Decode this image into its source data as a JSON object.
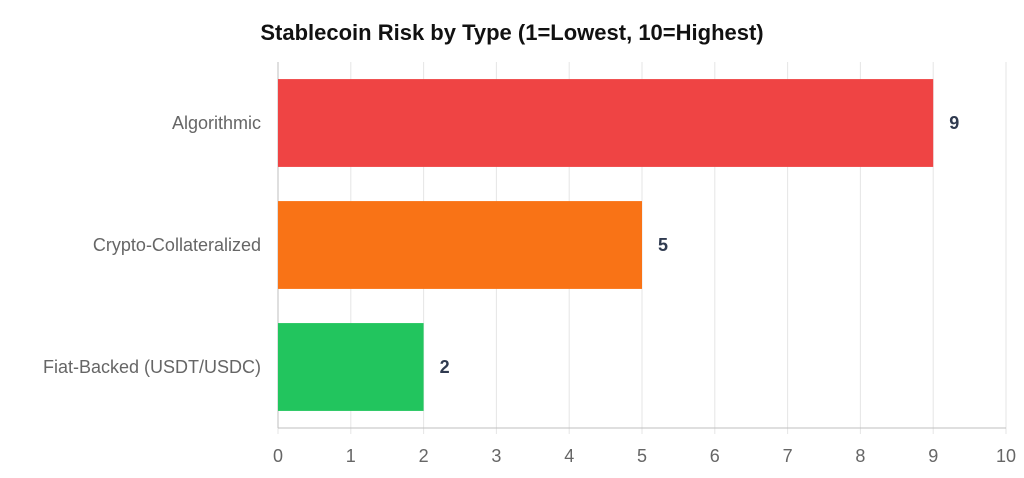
{
  "chart_data": {
    "type": "bar",
    "orientation": "horizontal",
    "title": "Stablecoin Risk by Type (1=Lowest, 10=Highest)",
    "categories": [
      "Algorithmic",
      "Crypto-Collateralized",
      "Fiat-Backed (USDT/USDC)"
    ],
    "values": [
      9,
      5,
      2
    ],
    "colors": [
      "#ef4444",
      "#f97316",
      "#22c55e"
    ],
    "xlim": [
      0,
      10
    ],
    "xticks": [
      0,
      1,
      2,
      3,
      4,
      5,
      6,
      7,
      8,
      9,
      10
    ],
    "xlabel": "",
    "ylabel": "",
    "grid": true,
    "legend": "none",
    "data_labels": true
  }
}
